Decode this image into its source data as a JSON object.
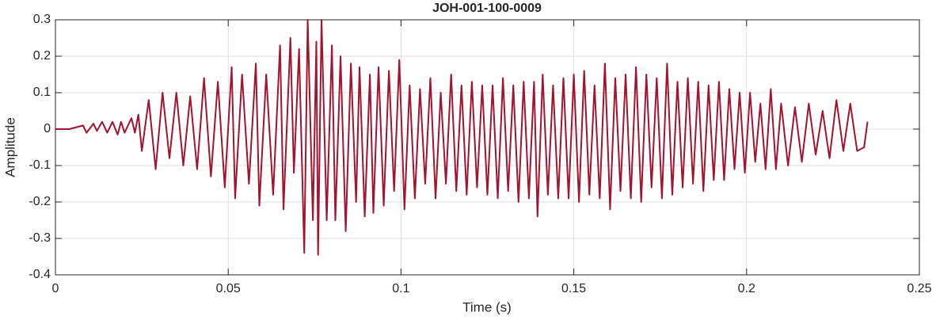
{
  "chart_data": {
    "type": "line",
    "title": "JOH-001-100-0009",
    "xlabel": "Time (s)",
    "ylabel": "Amplitude",
    "color": "#a2142f",
    "grid": true,
    "xlim": [
      0,
      0.25
    ],
    "ylim": [
      -0.4,
      0.3
    ],
    "xticks": [
      0,
      0.05,
      0.1,
      0.15,
      0.2,
      0.25
    ],
    "yticks": [
      -0.4,
      -0.3,
      -0.2,
      -0.1,
      0,
      0.1,
      0.2,
      0.3
    ],
    "x": [
      0,
      0.004,
      0.008,
      0.009,
      0.011,
      0.012,
      0.0135,
      0.015,
      0.0165,
      0.018,
      0.019,
      0.02,
      0.022,
      0.023,
      0.024,
      0.025,
      0.027,
      0.029,
      0.031,
      0.033,
      0.035,
      0.037,
      0.039,
      0.041,
      0.043,
      0.045,
      0.047,
      0.049,
      0.051,
      0.052,
      0.054,
      0.056,
      0.058,
      0.059,
      0.061,
      0.063,
      0.065,
      0.066,
      0.068,
      0.069,
      0.0705,
      0.072,
      0.073,
      0.0745,
      0.0755,
      0.076,
      0.077,
      0.0785,
      0.08,
      0.081,
      0.0825,
      0.084,
      0.0855,
      0.087,
      0.088,
      0.0895,
      0.091,
      0.092,
      0.0935,
      0.095,
      0.0965,
      0.098,
      0.0995,
      0.101,
      0.1025,
      0.104,
      0.1055,
      0.107,
      0.1085,
      0.11,
      0.1115,
      0.113,
      0.1145,
      0.116,
      0.1175,
      0.119,
      0.1205,
      0.122,
      0.1235,
      0.125,
      0.1265,
      0.128,
      0.1295,
      0.131,
      0.1325,
      0.134,
      0.1355,
      0.137,
      0.1385,
      0.1395,
      0.141,
      0.1425,
      0.144,
      0.1455,
      0.147,
      0.1485,
      0.15,
      0.1515,
      0.153,
      0.1545,
      0.156,
      0.1575,
      0.159,
      0.1605,
      0.162,
      0.1635,
      0.165,
      0.1665,
      0.168,
      0.1695,
      0.171,
      0.1725,
      0.174,
      0.1755,
      0.177,
      0.1785,
      0.18,
      0.1815,
      0.183,
      0.1845,
      0.186,
      0.1875,
      0.189,
      0.1905,
      0.192,
      0.1935,
      0.195,
      0.1965,
      0.198,
      0.1995,
      0.201,
      0.2025,
      0.204,
      0.2055,
      0.207,
      0.2085,
      0.21,
      0.212,
      0.214,
      0.216,
      0.218,
      0.22,
      0.222,
      0.224,
      0.226,
      0.228,
      0.23,
      0.232,
      0.234,
      0.235
    ],
    "values": [
      0,
      0,
      0.01,
      -0.01,
      0.015,
      -0.005,
      0.02,
      -0.01,
      0.02,
      -0.015,
      0.02,
      -0.01,
      0.03,
      -0.01,
      0.04,
      -0.06,
      0.08,
      -0.11,
      0.1,
      -0.08,
      0.1,
      -0.1,
      0.09,
      -0.11,
      0.14,
      -0.13,
      0.13,
      -0.16,
      0.17,
      -0.19,
      0.15,
      -0.15,
      0.18,
      -0.21,
      0.15,
      -0.18,
      0.23,
      -0.22,
      0.25,
      -0.12,
      0.22,
      -0.34,
      0.3,
      -0.25,
      0.24,
      -0.345,
      0.3,
      -0.25,
      0.23,
      -0.25,
      0.2,
      -0.28,
      0.18,
      -0.2,
      0.17,
      -0.24,
      0.15,
      -0.23,
      0.17,
      -0.21,
      0.16,
      -0.17,
      0.19,
      -0.22,
      0.12,
      -0.19,
      0.11,
      -0.15,
      0.14,
      -0.19,
      0.1,
      -0.15,
      0.15,
      -0.17,
      0.12,
      -0.18,
      0.13,
      -0.16,
      0.12,
      -0.18,
      0.12,
      -0.19,
      0.14,
      -0.17,
      0.12,
      -0.2,
      0.13,
      -0.19,
      0.13,
      -0.24,
      0.15,
      -0.18,
      0.12,
      -0.19,
      0.14,
      -0.19,
      0.15,
      -0.2,
      0.16,
      -0.18,
      0.12,
      -0.19,
      0.18,
      -0.22,
      0.14,
      -0.17,
      0.15,
      -0.19,
      0.17,
      -0.2,
      0.15,
      -0.16,
      0.14,
      -0.19,
      0.18,
      -0.18,
      0.13,
      -0.16,
      0.14,
      -0.15,
      0.13,
      -0.17,
      0.12,
      -0.14,
      0.13,
      -0.14,
      0.11,
      -0.11,
      0.1,
      -0.12,
      0.1,
      -0.09,
      0.07,
      -0.11,
      0.11,
      -0.11,
      0.07,
      -0.1,
      0.06,
      -0.09,
      0.07,
      -0.07,
      0.05,
      -0.08,
      0.08,
      -0.06,
      0.07,
      -0.06,
      -0.05,
      0.02
    ]
  }
}
